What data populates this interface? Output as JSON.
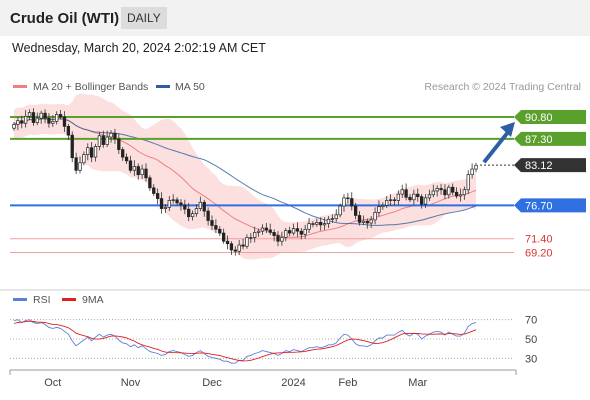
{
  "header": {
    "title": "Crude Oil (WTI)",
    "timeframe": "DAILY"
  },
  "timestamp": "Wednesday, March 20, 2024 2:02:19 AM CET",
  "colors": {
    "bollinger": "#f08080",
    "ma50": "#2e5e9e",
    "resistance": "#5aa02c",
    "pivot": "#2f6fe0",
    "support": "#f0a0a0",
    "support_text": "#e03030",
    "current": "#333333",
    "rsi": "#5b7fd6",
    "rsi_ma": "#e02020",
    "arrow": "#2d5fa6"
  },
  "chart_data": [
    {
      "type": "candlestick",
      "legend": [
        {
          "name": "MA 20 + Bollinger Bands",
          "color": "#f08080"
        },
        {
          "name": "MA 50",
          "color": "#2e5e9e"
        }
      ],
      "credit": "Research © 2024 Trading Central",
      "ylim": [
        64.5,
        93.5
      ],
      "x_tick_labels": [
        "Oct",
        "Nov",
        "Dec",
        "2024",
        "Feb",
        "Mar"
      ],
      "levels": [
        {
          "value": 90.8,
          "label": "90.80",
          "kind": "resistance"
        },
        {
          "value": 87.3,
          "label": "87.30",
          "kind": "resistance"
        },
        {
          "value": 83.12,
          "label": "83.12",
          "kind": "current"
        },
        {
          "value": 76.7,
          "label": "76.70",
          "kind": "pivot"
        },
        {
          "value": 71.4,
          "label": "71.40",
          "kind": "support"
        },
        {
          "value": 69.2,
          "label": "69.20",
          "kind": "support"
        }
      ],
      "closes": [
        89.6,
        90.2,
        89.8,
        90.9,
        91.5,
        89.9,
        90.6,
        91.4,
        90.6,
        89.8,
        90.1,
        91.2,
        90.8,
        89.3,
        87.9,
        84.3,
        82.3,
        83.5,
        84.8,
        85.9,
        84.4,
        86.1,
        87.8,
        86.4,
        87.6,
        88.2,
        87.3,
        85.6,
        84.4,
        83.8,
        82.3,
        82.9,
        81.6,
        82.5,
        81.1,
        79.5,
        78.6,
        77.8,
        76.2,
        76.4,
        77.5,
        77.6,
        77.1,
        76.8,
        76.1,
        74.9,
        75.4,
        76.2,
        77.2,
        75.8,
        74.3,
        73.5,
        72.9,
        72.3,
        71.0,
        70.6,
        69.6,
        69.4,
        70.4,
        70.2,
        71.6,
        71.6,
        72.4,
        72.6,
        73.1,
        72.8,
        72.4,
        71.9,
        71.0,
        71.6,
        72.7,
        72.3,
        73.0,
        72.6,
        72.1,
        72.9,
        73.8,
        73.7,
        74.0,
        73.6,
        73.8,
        74.5,
        74.6,
        75.2,
        76.6,
        77.9,
        77.8,
        76.6,
        75.1,
        74.0,
        74.2,
        73.9,
        74.4,
        75.6,
        76.5,
        76.7,
        77.5,
        77.6,
        77.5,
        78.5,
        79.2,
        78.0,
        77.6,
        78.5,
        78.1,
        76.9,
        77.9,
        78.4,
        79.0,
        79.4,
        79.2,
        78.4,
        79.6,
        78.8,
        78.2,
        78.4,
        79.2,
        81.6,
        82.5,
        83.1
      ]
    },
    {
      "type": "line",
      "legend": [
        {
          "name": "RSI",
          "color": "#5b7fd6"
        },
        {
          "name": "9MA",
          "color": "#e02020"
        }
      ],
      "ylim": [
        20,
        80
      ],
      "y_ticks": [
        70,
        50,
        30
      ],
      "rsi": [
        69,
        70,
        67,
        69,
        70,
        67,
        66,
        67,
        65,
        62,
        61,
        62,
        61,
        58,
        55,
        48,
        43,
        46,
        49,
        52,
        48,
        52,
        55,
        52,
        54,
        55,
        53,
        49,
        46,
        45,
        42,
        44,
        41,
        43,
        40,
        37,
        36,
        35,
        33,
        34,
        37,
        38,
        37,
        36,
        34,
        32,
        33,
        36,
        38,
        35,
        32,
        31,
        30,
        29,
        27,
        27,
        25,
        25,
        28,
        28,
        32,
        33,
        35,
        36,
        38,
        37,
        36,
        35,
        33,
        35,
        38,
        37,
        39,
        38,
        37,
        39,
        41,
        41,
        42,
        41,
        42,
        44,
        44,
        46,
        51,
        55,
        54,
        50,
        45,
        43,
        43,
        42,
        44,
        48,
        51,
        51,
        54,
        54,
        54,
        57,
        59,
        55,
        53,
        56,
        55,
        50,
        53,
        55,
        57,
        58,
        57,
        54,
        57,
        55,
        53,
        53,
        56,
        63,
        66,
        67
      ],
      "rsi_ma": [
        66.0,
        67.1,
        67.4,
        67.9,
        68.4,
        68.1,
        67.5,
        67.4,
        67.1,
        66.0,
        65.1,
        64.9,
        64.1,
        63.0,
        61.6,
        59.1,
        56.0,
        54.6,
        53.4,
        52.4,
        50.7,
        49.9,
        50.0,
        50.6,
        51.9,
        53.0,
        53.2,
        52.8,
        52.1,
        51.1,
        49.4,
        47.8,
        45.6,
        44.0,
        42.7,
        41.6,
        40.3,
        39.3,
        37.6,
        36.5,
        36.1,
        35.9,
        35.8,
        35.7,
        35.4,
        35.1,
        34.9,
        35.2,
        35.6,
        35.4,
        34.9,
        34.2,
        33.6,
        32.9,
        31.7,
        30.7,
        29.6,
        28.6,
        27.8,
        27.3,
        27.4,
        28.0,
        29.1,
        30.3,
        31.8,
        33.1,
        34.3,
        35.3,
        35.6,
        35.8,
        36.1,
        36.2,
        36.2,
        36.5,
        36.8,
        37.2,
        38.1,
        38.8,
        39.4,
        39.7,
        40.3,
        41.2,
        42.0,
        43.3,
        45.1,
        47.3,
        49.1,
        49.9,
        49.8,
        49.2,
        48.3,
        47.3,
        46.2,
        45.3,
        45.6,
        46.3,
        47.6,
        49.3,
        51.2,
        53.3,
        55.2,
        55.9,
        55.6,
        55.7,
        55.8,
        55.3,
        55.1,
        55.0,
        54.9,
        55.3,
        55.2,
        55.0,
        55.6,
        55.6,
        55.3,
        54.8,
        55.1,
        56.4,
        58.0,
        59.5
      ]
    }
  ]
}
